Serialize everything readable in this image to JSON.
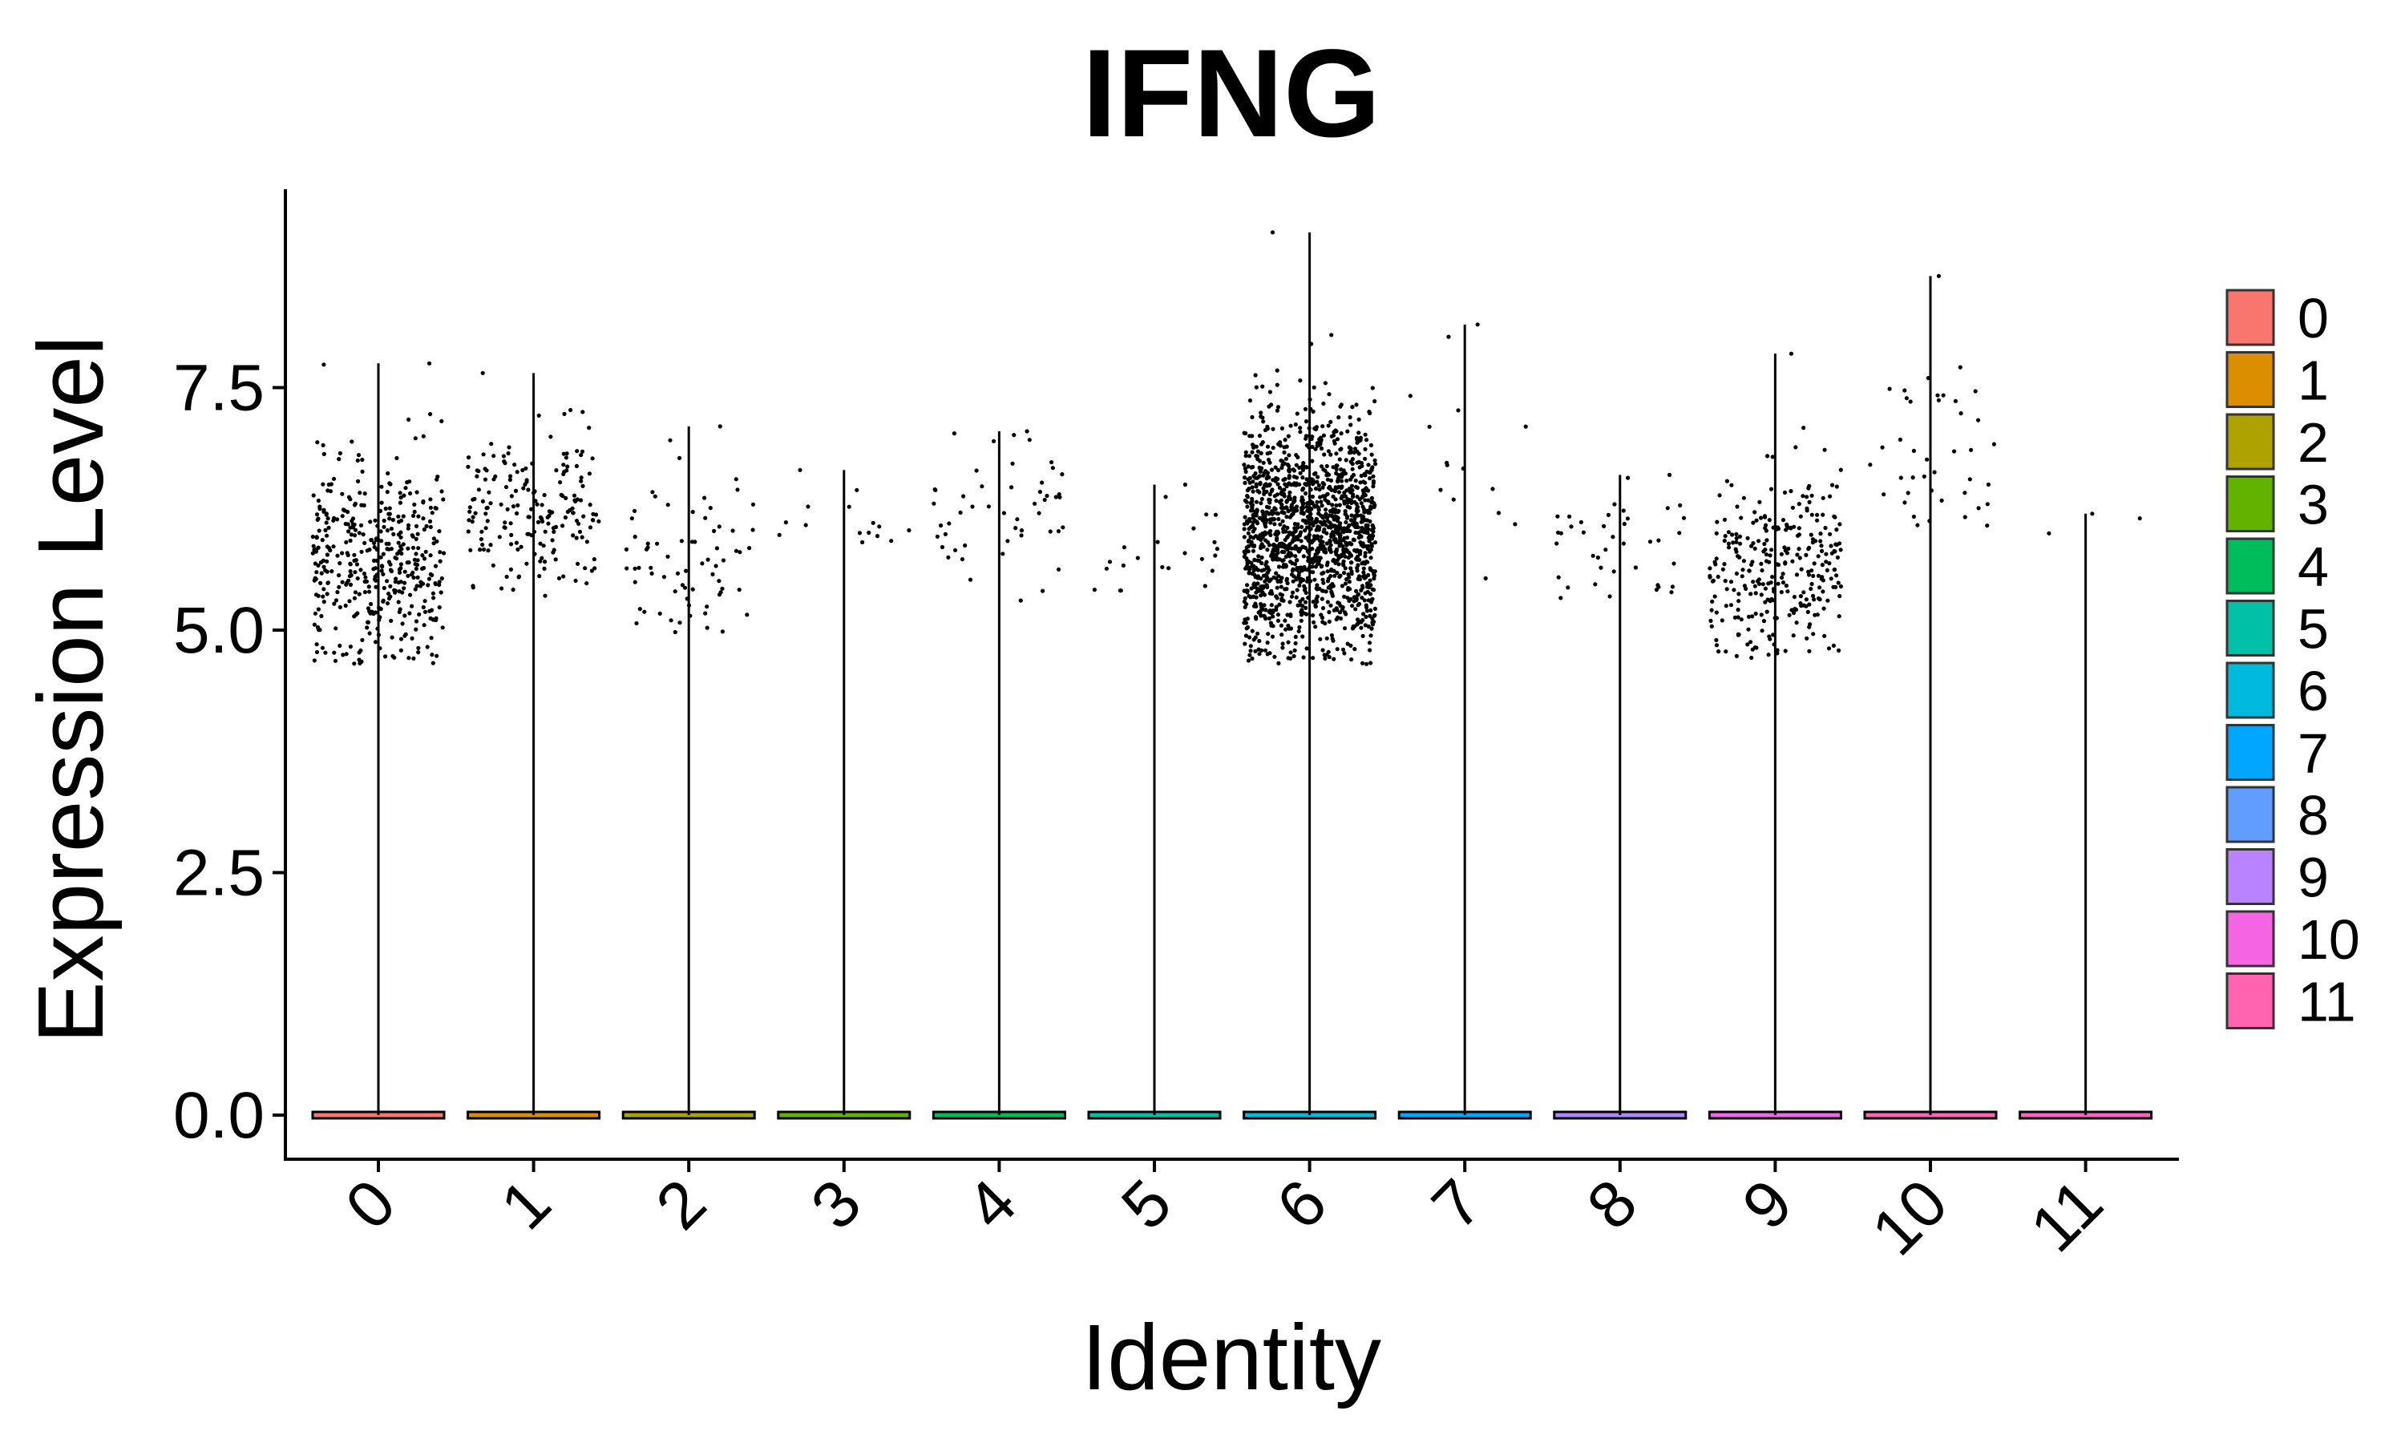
{
  "chart_data": {
    "type": "scatter",
    "subtype": "violin-jitter",
    "title": "IFNG",
    "xlabel": "Identity",
    "ylabel": "Expression Level",
    "ylim": [
      -0.45,
      9.6
    ],
    "yticks": [
      0.0,
      2.5,
      5.0,
      7.5
    ],
    "ytick_labels": [
      "0.0",
      "2.5",
      "5.0",
      "7.5"
    ],
    "categories": [
      "0",
      "1",
      "2",
      "3",
      "4",
      "5",
      "6",
      "7",
      "8",
      "9",
      "10",
      "11"
    ],
    "grid": false,
    "legend_position": "right",
    "series": [
      {
        "name": "0",
        "color": "#F8766D",
        "max": 7.75,
        "n_points": 430,
        "median_nonzero": 5.7,
        "spread": 0.55,
        "min_nonzero": 4.65
      },
      {
        "name": "1",
        "color": "#DB8E00",
        "max": 7.65,
        "n_points": 190,
        "median_nonzero": 6.2,
        "spread": 0.42,
        "min_nonzero": 5.35
      },
      {
        "name": "2",
        "color": "#AEA200",
        "max": 7.1,
        "n_points": 70,
        "median_nonzero": 5.7,
        "spread": 0.45,
        "min_nonzero": 4.9
      },
      {
        "name": "3",
        "color": "#64B200",
        "max": 6.65,
        "n_points": 14,
        "median_nonzero": 6.1,
        "spread": 0.3,
        "min_nonzero": 5.8
      },
      {
        "name": "4",
        "color": "#00BD5C",
        "max": 7.05,
        "n_points": 50,
        "median_nonzero": 6.2,
        "spread": 0.4,
        "min_nonzero": 5.3
      },
      {
        "name": "5",
        "color": "#00C1A7",
        "max": 6.5,
        "n_points": 22,
        "median_nonzero": 5.75,
        "spread": 0.3,
        "min_nonzero": 5.35
      },
      {
        "name": "6",
        "color": "#00BADE",
        "max": 9.1,
        "n_points": 1500,
        "median_nonzero": 6.0,
        "spread": 0.6,
        "min_nonzero": 4.65
      },
      {
        "name": "7",
        "color": "#00A6FF",
        "max": 8.15,
        "n_points": 14,
        "median_nonzero": 6.6,
        "spread": 0.7,
        "min_nonzero": 5.5
      },
      {
        "name": "8",
        "color": "#B385FF",
        "max": 6.6,
        "n_points": 40,
        "median_nonzero": 5.9,
        "spread": 0.4,
        "min_nonzero": 5.2
      },
      {
        "name": "9",
        "color": "#EF67EB",
        "max": 7.85,
        "n_points": 300,
        "median_nonzero": 5.6,
        "spread": 0.5,
        "min_nonzero": 4.7
      },
      {
        "name": "10",
        "color": "#FF63B6",
        "max": 8.65,
        "n_points": 40,
        "median_nonzero": 6.8,
        "spread": 0.55,
        "min_nonzero": 5.75
      },
      {
        "name": "11",
        "color": "#FF61C3",
        "max": 6.2,
        "n_points": 2,
        "median_nonzero": 6.0,
        "spread": 0.2,
        "min_nonzero": 5.85
      }
    ],
    "legend_colors": [
      "#F8766D",
      "#DB8E00",
      "#AEA200",
      "#64B200",
      "#00BD5C",
      "#00C1A7",
      "#00BADE",
      "#00A6FF",
      "#619CFF",
      "#B983FF",
      "#F564E3",
      "#FF64B0"
    ]
  }
}
